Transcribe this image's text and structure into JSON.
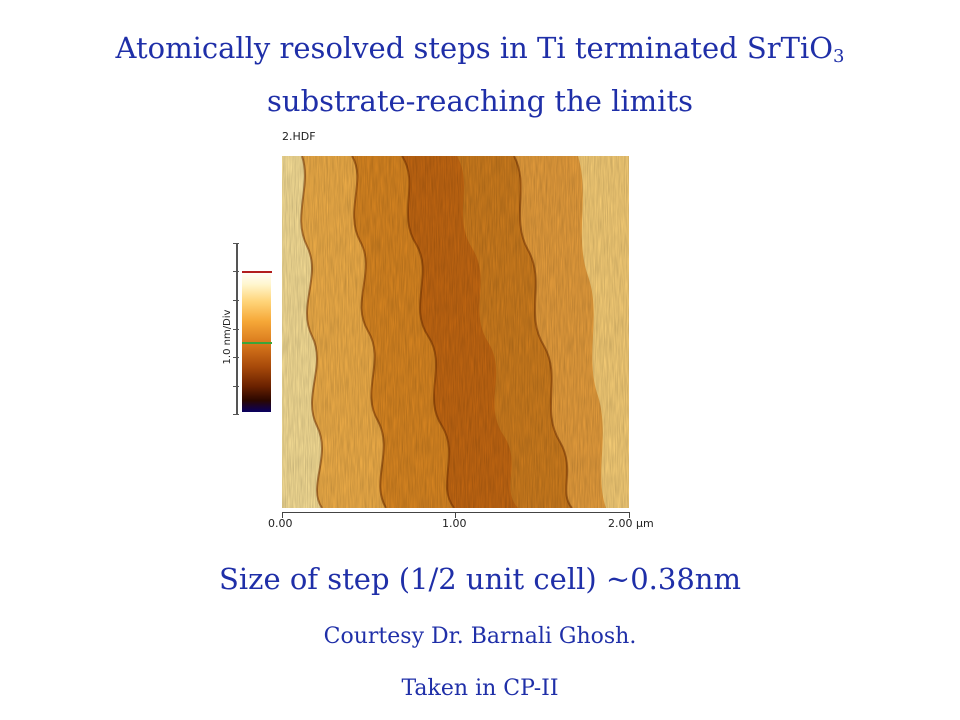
{
  "slide": {
    "title_line1": "Atomically resolved steps in Ti terminated SrTiO",
    "title_subscript": "3",
    "title_line2": "substrate-reaching the limits",
    "step_size": "Size of step (1/2 unit cell) ~0.38nm",
    "courtesy": "Courtesy Dr. Barnali Ghosh.",
    "taken": "Taken in CP-II"
  },
  "afm_figure": {
    "file_label": "2.HDF",
    "colorbar_label": "1.0 nm/Div",
    "x_ticks": [
      "0.00",
      "1.00",
      "2.00 µm"
    ],
    "palette": {
      "light": "#fff2b0",
      "mid": "#f0a030",
      "dark": "#b85a10",
      "darkest": "#6a2a00"
    }
  }
}
